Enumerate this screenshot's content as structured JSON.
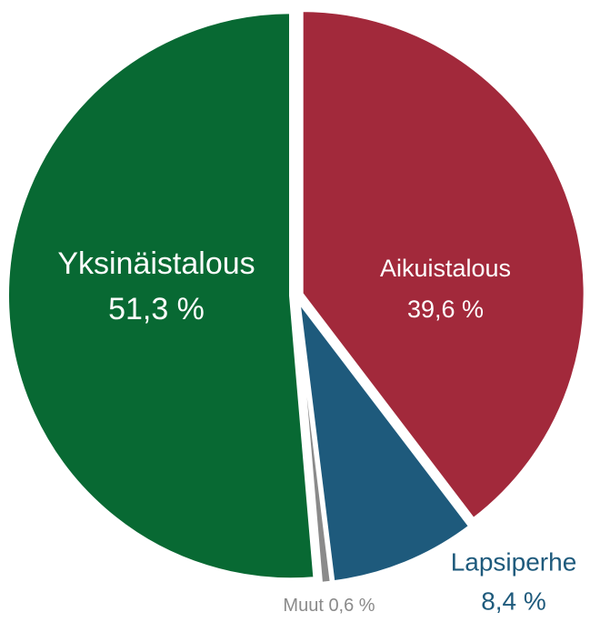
{
  "chart_data": {
    "type": "pie",
    "categories": [
      "Aikuistalous",
      "Lapsiperhe",
      "Muut",
      "Yksinäistalous"
    ],
    "values": [
      39.6,
      8.4,
      0.6,
      51.3
    ],
    "value_labels": [
      "39,6 %",
      "8,4 %",
      "0,6 %",
      "51,3 %"
    ],
    "colors": [
      "#a2293b",
      "#1e5a7c",
      "#8a8a8a",
      "#086933"
    ]
  }
}
